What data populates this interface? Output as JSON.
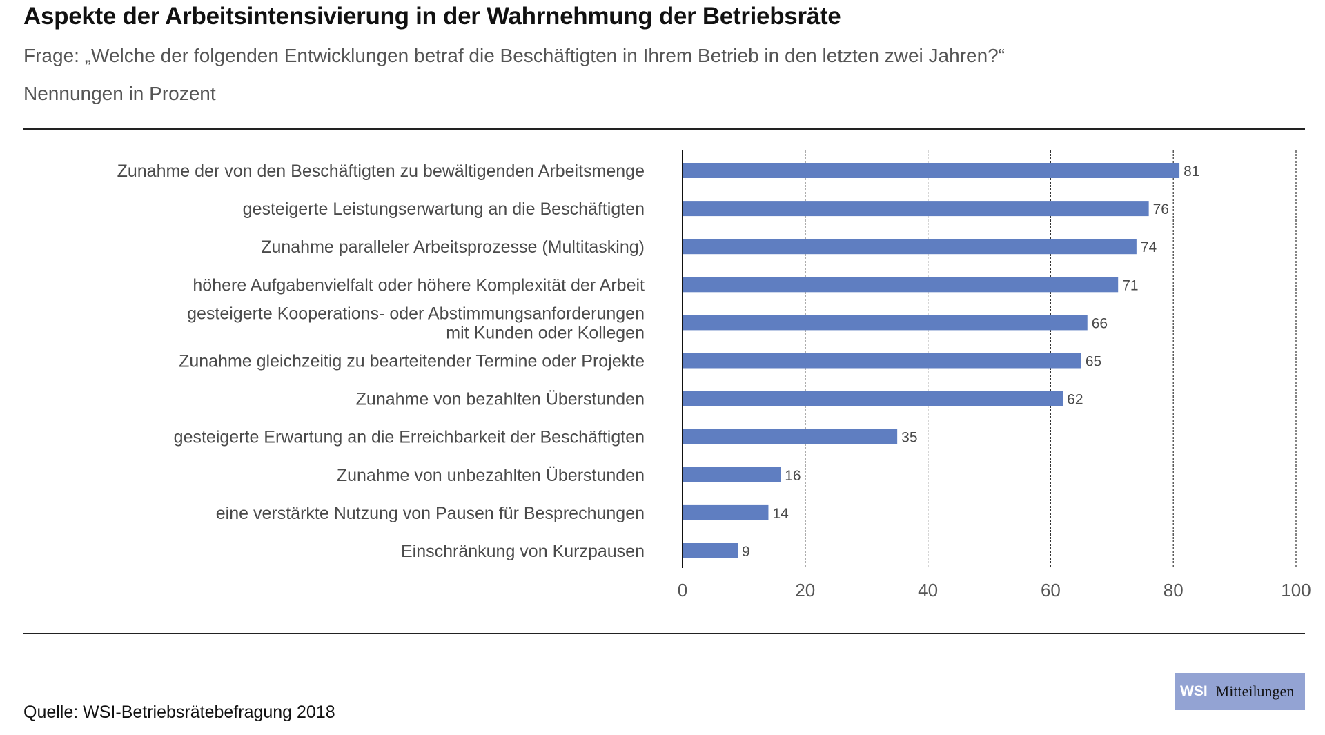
{
  "header": {
    "title": "Aspekte der Arbeitsintensivierung in der Wahrnehmung der Betriebsräte",
    "subtitle": "Frage: „Welche der folgenden Entwicklungen betraf die Beschäftigten in Ihrem Betrieb in den letzten zwei Jahren?“",
    "unit": "Nennungen in Prozent"
  },
  "footer": {
    "source": "Quelle: WSI-Betriebsrätebefragung 2018",
    "logo_short": "WSI",
    "logo_long": "Mitteilungen"
  },
  "colors": {
    "bar": "#5f7ec1",
    "logo_bg": "#93a3d3",
    "text": "#4a4a4a"
  },
  "chart_data": {
    "type": "bar",
    "orientation": "horizontal",
    "title": "Aspekte der Arbeitsintensivierung in der Wahrnehmung der Betriebsräte",
    "xlabel": "",
    "ylabel": "",
    "xlim": [
      0,
      100
    ],
    "xticks": [
      0,
      20,
      40,
      60,
      80,
      100
    ],
    "grid": "vertical dashed",
    "legend": "none",
    "categories": [
      [
        "Zunahme der von den Beschäftigten zu bewältigenden Arbeitsmenge"
      ],
      [
        "gesteigerte Leistungserwartung an die Beschäftigten"
      ],
      [
        "Zunahme paralleler Arbeitsprozesse (Multitasking)"
      ],
      [
        "höhere Aufgabenvielfalt oder höhere Komplexität der Arbeit"
      ],
      [
        "gesteigerte Kooperations- oder Abstimmungsanforderungen",
        "mit Kunden oder Kollegen"
      ],
      [
        "Zunahme gleichzeitig zu bearteitender Termine oder Projekte"
      ],
      [
        "Zunahme von bezahlten Überstunden"
      ],
      [
        "gesteigerte Erwartung an die  Erreichbarkeit der Beschäftigten"
      ],
      [
        "Zunahme von unbezahlten Überstunden"
      ],
      [
        "eine verstärkte Nutzung von Pausen für Besprechungen"
      ],
      [
        "Einschränkung von Kurzpausen"
      ]
    ],
    "values": [
      81,
      76,
      74,
      71,
      66,
      65,
      62,
      35,
      16,
      14,
      9
    ]
  }
}
